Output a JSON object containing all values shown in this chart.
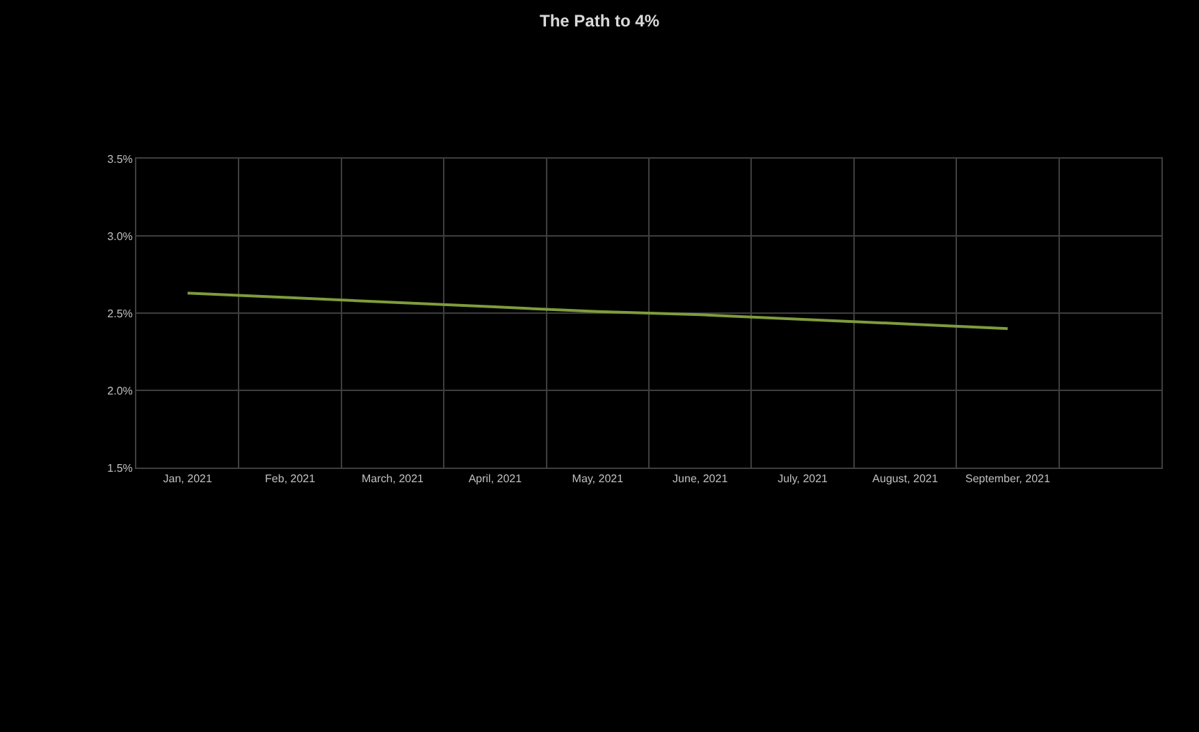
{
  "chart_data": {
    "type": "line",
    "title": "The Path to 4%",
    "categories": [
      "Jan, 2021",
      "Feb, 2021",
      "March, 2021",
      "April, 2021",
      "May, 2021",
      "June, 2021",
      "July, 2021",
      "August, 2021",
      "September, 2021",
      null
    ],
    "values": [
      2.63,
      2.6,
      2.57,
      2.54,
      2.51,
      2.49,
      2.46,
      2.43,
      2.4,
      null
    ],
    "color": "#7f9c3c",
    "ylim": [
      1.5,
      3.5
    ],
    "yticks": [
      {
        "value": 1.5,
        "label": "1.5%"
      },
      {
        "value": 2.0,
        "label": "2.0%"
      },
      {
        "value": 2.5,
        "label": "2.5%"
      },
      {
        "value": 3.0,
        "label": "3.0%"
      },
      {
        "value": 3.5,
        "label": "3.5%"
      }
    ],
    "grid": true
  }
}
